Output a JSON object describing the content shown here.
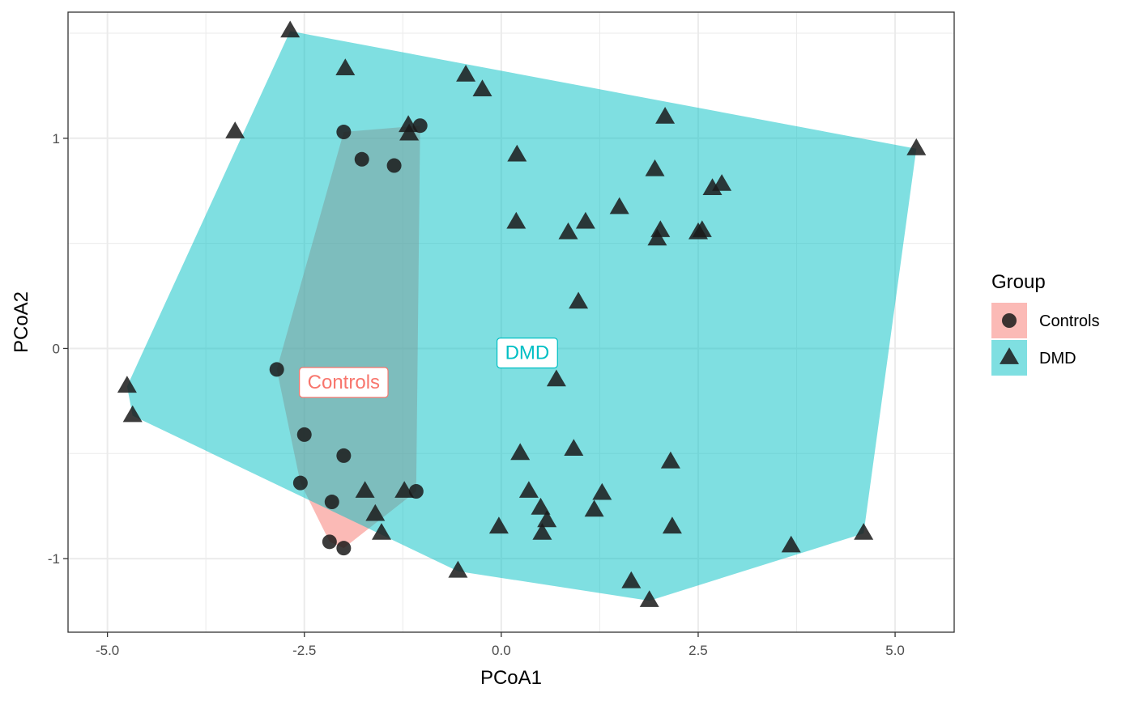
{
  "chart_data": {
    "type": "scatter",
    "xlabel": "PCoA1",
    "ylabel": "PCoA2",
    "xlim": [
      -5.5,
      5.75
    ],
    "ylim": [
      -1.35,
      1.6
    ],
    "x_ticks": [
      -5.0,
      -2.5,
      0.0,
      2.5,
      5.0
    ],
    "x_tick_labels": [
      "-5.0",
      "-2.5",
      "0.0",
      "2.5",
      "5.0"
    ],
    "y_ticks": [
      -1,
      0,
      1
    ],
    "y_tick_labels": [
      "-1",
      "0",
      "1"
    ],
    "grid": true,
    "legend": {
      "title": "Group",
      "placement": "right",
      "entries": [
        "Controls",
        "DMD"
      ]
    },
    "colors": {
      "Controls": "#F8766D",
      "DMD": "#00BFC4",
      "points": "#1a1a1a"
    },
    "series": [
      {
        "name": "Controls",
        "marker": "circle",
        "label": "Controls",
        "label_pos": [
          -2.0,
          -0.16
        ],
        "points": [
          [
            -2.0,
            1.03
          ],
          [
            -1.03,
            1.06
          ],
          [
            -1.77,
            0.9
          ],
          [
            -1.36,
            0.87
          ],
          [
            -2.85,
            -0.1
          ],
          [
            -2.5,
            -0.41
          ],
          [
            -2.0,
            -0.51
          ],
          [
            -2.55,
            -0.64
          ],
          [
            -2.15,
            -0.73
          ],
          [
            -1.08,
            -0.68
          ],
          [
            -2.18,
            -0.92
          ],
          [
            -2.0,
            -0.95
          ]
        ],
        "hull": [
          [
            -2.0,
            1.03
          ],
          [
            -1.03,
            1.06
          ],
          [
            -1.08,
            -0.68
          ],
          [
            -2.0,
            -0.95
          ],
          [
            -2.18,
            -0.92
          ],
          [
            -2.55,
            -0.64
          ],
          [
            -2.85,
            -0.1
          ]
        ]
      },
      {
        "name": "DMD",
        "marker": "triangle",
        "label": "DMD",
        "label_pos": [
          0.33,
          -0.02
        ],
        "points": [
          [
            -2.68,
            1.51
          ],
          [
            -1.98,
            1.33
          ],
          [
            -0.45,
            1.3
          ],
          [
            -0.24,
            1.23
          ],
          [
            -3.38,
            1.03
          ],
          [
            -1.18,
            1.06
          ],
          [
            -1.17,
            1.02
          ],
          [
            2.08,
            1.1
          ],
          [
            5.27,
            0.95
          ],
          [
            0.2,
            0.92
          ],
          [
            1.95,
            0.85
          ],
          [
            2.68,
            0.76
          ],
          [
            2.8,
            0.78
          ],
          [
            1.5,
            0.67
          ],
          [
            0.19,
            0.6
          ],
          [
            1.07,
            0.6
          ],
          [
            0.85,
            0.55
          ],
          [
            2.02,
            0.56
          ],
          [
            1.98,
            0.52
          ],
          [
            2.5,
            0.55
          ],
          [
            2.55,
            0.56
          ],
          [
            0.98,
            0.22
          ],
          [
            0.7,
            -0.15
          ],
          [
            -4.75,
            -0.18
          ],
          [
            -4.68,
            -0.32
          ],
          [
            0.24,
            -0.5
          ],
          [
            0.92,
            -0.48
          ],
          [
            2.15,
            -0.54
          ],
          [
            -1.73,
            -0.68
          ],
          [
            -1.23,
            -0.68
          ],
          [
            0.35,
            -0.68
          ],
          [
            1.28,
            -0.69
          ],
          [
            0.5,
            -0.76
          ],
          [
            1.18,
            -0.77
          ],
          [
            -1.6,
            -0.79
          ],
          [
            0.58,
            -0.82
          ],
          [
            -0.03,
            -0.85
          ],
          [
            2.17,
            -0.85
          ],
          [
            -1.52,
            -0.88
          ],
          [
            0.52,
            -0.88
          ],
          [
            4.6,
            -0.88
          ],
          [
            3.68,
            -0.94
          ],
          [
            -0.55,
            -1.06
          ],
          [
            1.65,
            -1.11
          ],
          [
            1.88,
            -1.2
          ]
        ],
        "hull": [
          [
            -2.68,
            1.51
          ],
          [
            5.27,
            0.95
          ],
          [
            4.6,
            -0.88
          ],
          [
            1.88,
            -1.2
          ],
          [
            -0.55,
            -1.06
          ],
          [
            -4.68,
            -0.32
          ],
          [
            -4.75,
            -0.18
          ]
        ]
      }
    ]
  }
}
